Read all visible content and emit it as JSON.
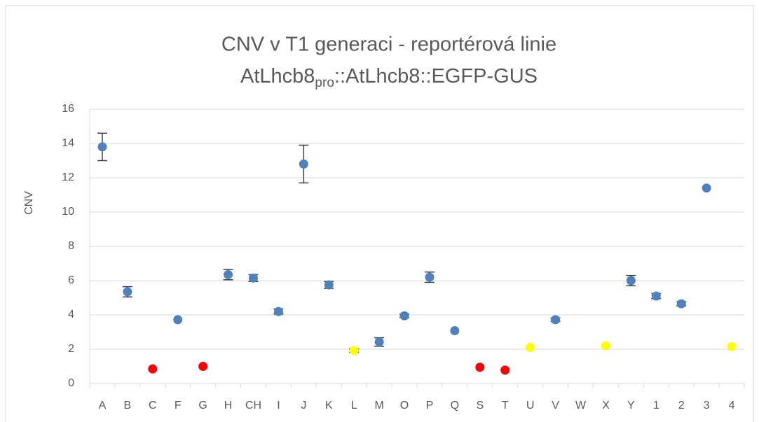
{
  "chart_data": {
    "type": "scatter",
    "title": "CNV v T1 generaci - reportérová linie",
    "subtitle": [
      "AtLhcb8",
      "pro",
      "::AtLhcb8::EGFP-GUS"
    ],
    "y_label": "CNV",
    "categories": [
      "A",
      "B",
      "C",
      "F",
      "G",
      "H",
      "CH",
      "I",
      "J",
      "K",
      "L",
      "M",
      "O",
      "P",
      "Q",
      "S",
      "T",
      "U",
      "V",
      "W",
      "X",
      "Y",
      "1",
      "2",
      "3",
      "4"
    ],
    "values": [
      13.8,
      5.35,
      0.85,
      3.72,
      1.0,
      6.35,
      6.15,
      4.2,
      12.8,
      5.75,
      1.92,
      2.42,
      3.95,
      6.2,
      3.08,
      0.95,
      0.78,
      2.1,
      3.72,
      null,
      2.2,
      6.0,
      5.1,
      4.65,
      11.4,
      2.15
    ],
    "errors": [
      0.8,
      0.3,
      null,
      null,
      null,
      0.3,
      0.2,
      0.15,
      1.1,
      0.2,
      0.1,
      0.25,
      0.1,
      0.3,
      null,
      null,
      null,
      null,
      0.1,
      null,
      null,
      0.3,
      0.15,
      0.12,
      null,
      null
    ],
    "point_colors": [
      "#4f81bd",
      "#4f81bd",
      "#ff0000",
      "#4f81bd",
      "#ff0000",
      "#4f81bd",
      "#4f81bd",
      "#4f81bd",
      "#4f81bd",
      "#4f81bd",
      "#ffff00",
      "#4f81bd",
      "#4f81bd",
      "#4f81bd",
      "#4f81bd",
      "#ff0000",
      "#ff0000",
      "#ffff00",
      "#4f81bd",
      "#4f81bd",
      "#ffff00",
      "#4f81bd",
      "#4f81bd",
      "#4f81bd",
      "#4f81bd",
      "#ffff00"
    ],
    "ylim": [
      0,
      16
    ],
    "yticks": [
      0,
      2,
      4,
      6,
      8,
      10,
      12,
      14,
      16
    ],
    "grid": true
  }
}
